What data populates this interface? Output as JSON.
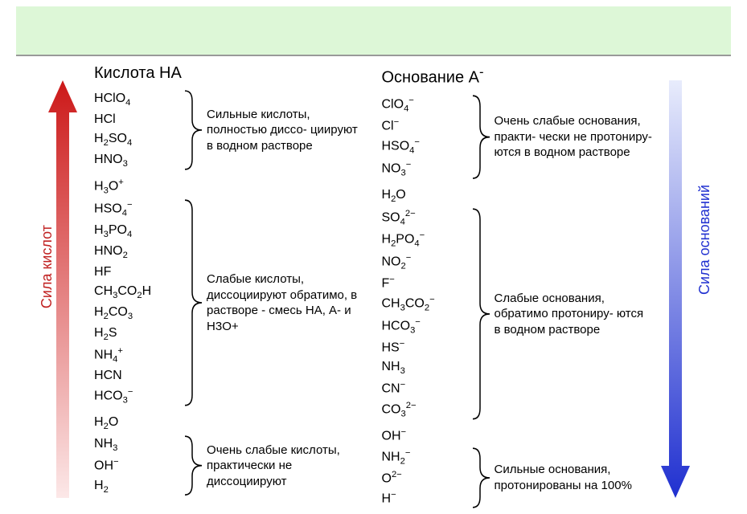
{
  "banner_bg": "#ddf7d7",
  "labels": {
    "acid_header": "Кислота HA",
    "base_header": "Основание A",
    "base_header_sup": "-",
    "acid_strength": "Сила кислот",
    "base_strength": "Сила оснований"
  },
  "colors": {
    "acid_arrow_top": "#cc1818",
    "acid_arrow_bottom": "#f8d6d6",
    "base_arrow_top": "#e0e8ff",
    "base_arrow_bottom": "#2030d0",
    "acid_label": "#c02020",
    "base_label": "#2030d0",
    "brace": "#000000"
  },
  "acid_groups": [
    {
      "formulas": [
        {
          "html": "HClO<sub>4</sub>"
        },
        {
          "html": "HCl"
        },
        {
          "html": "H<sub>2</sub>SO<sub>4</sub>"
        },
        {
          "html": "HNO<sub>3</sub>"
        }
      ],
      "desc": "Сильные кислоты, полностью диссо- циируют в водном растворе",
      "brace": true
    },
    {
      "single": {
        "html": "H<sub>3</sub>O<sup>+</sup>"
      }
    },
    {
      "formulas": [
        {
          "html": "HSO<sub>4</sub><sup>−</sup>"
        },
        {
          "html": "H<sub>3</sub>PO<sub>4</sub>"
        },
        {
          "html": "HNO<sub>2</sub>"
        },
        {
          "html": "HF"
        },
        {
          "html": "CH<sub>3</sub>CO<sub>2</sub>H"
        },
        {
          "html": "H<sub>2</sub>CO<sub>3</sub>"
        },
        {
          "html": "H<sub>2</sub>S"
        },
        {
          "html": "NH<sub>4</sub><sup>+</sup>"
        },
        {
          "html": "HCN"
        },
        {
          "html": "HCO<sub>3</sub><sup>−</sup>"
        }
      ],
      "desc": "Слабые кислоты, диссоциируют обратимо, в растворе - смесь НА, А- и Н3О+",
      "brace": true
    },
    {
      "single": {
        "html": "H<sub>2</sub>O"
      }
    },
    {
      "formulas": [
        {
          "html": "NH<sub>3</sub>"
        },
        {
          "html": "OH<sup>−</sup>"
        },
        {
          "html": "H<sub>2</sub>"
        }
      ],
      "desc": "Очень слабые кислоты, практически не диссоциируют",
      "brace": true
    }
  ],
  "base_groups": [
    {
      "formulas": [
        {
          "html": "ClO<sub>4</sub><sup>−</sup>"
        },
        {
          "html": "Cl<sup>−</sup>"
        },
        {
          "html": "HSO<sub>4</sub><sup>−</sup>"
        },
        {
          "html": "NO<sub>3</sub><sup>−</sup>"
        }
      ],
      "desc": "Очень слабые основания, практи- чески не протониру- ются в водном растворе",
      "brace": true
    },
    {
      "single": {
        "html": "H<sub>2</sub>O"
      }
    },
    {
      "formulas": [
        {
          "html": "SO<sub>4</sub><sup>2−</sup>"
        },
        {
          "html": "H<sub>2</sub>PO<sub>4</sub><sup>−</sup>"
        },
        {
          "html": "NO<sub>2</sub><sup>−</sup>"
        },
        {
          "html": "F<sup>−</sup>"
        },
        {
          "html": "CH<sub>3</sub>CO<sub>2</sub><sup>−</sup>"
        },
        {
          "html": "HCO<sub>3</sub><sup>−</sup>"
        },
        {
          "html": "HS<sup>−</sup>"
        },
        {
          "html": "NH<sub>3</sub>"
        },
        {
          "html": "CN<sup>−</sup>"
        },
        {
          "html": "CO<sub>3</sub><sup>2−</sup>"
        }
      ],
      "desc": "Слабые основания, обратимо протониру- ются в водном растворе",
      "brace": true
    },
    {
      "single": {
        "html": "OH<sup>−</sup>"
      }
    },
    {
      "formulas": [
        {
          "html": "NH<sub>2</sub><sup>−</sup>"
        },
        {
          "html": "O<sup>2−</sup>"
        },
        {
          "html": "H<sup>−</sup>"
        }
      ],
      "desc": "Сильные основания, протонированы на 100%",
      "brace": true
    }
  ]
}
